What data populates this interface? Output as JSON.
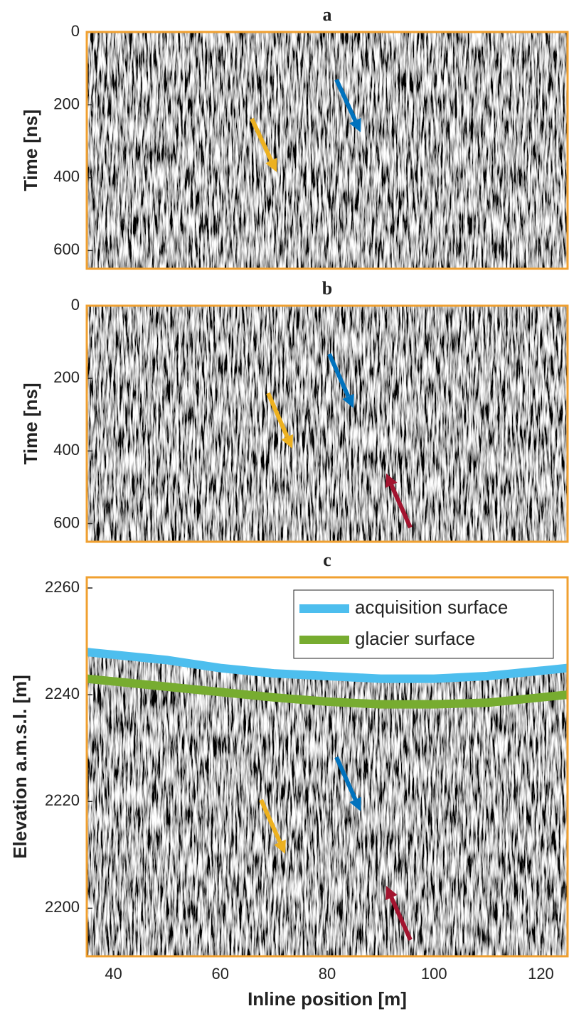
{
  "chart_data": [
    {
      "type": "image",
      "title": "a",
      "y_label": "Time [ns]",
      "ylim": [
        0,
        650
      ],
      "yticks": [
        0,
        200,
        400,
        600
      ],
      "y_reversed": true
    },
    {
      "type": "image",
      "title": "b",
      "y_label": "Time [ns]",
      "ylim": [
        0,
        650
      ],
      "yticks": [
        0,
        200,
        400,
        600
      ],
      "y_reversed": true
    },
    {
      "type": "line",
      "title": "c",
      "x_label": "Inline position [m]",
      "y_label": "Elevation a.m.s.l. [m]",
      "xlim": [
        35,
        125
      ],
      "xticks": [
        40,
        60,
        80,
        100,
        120
      ],
      "ylim": [
        2191,
        2262
      ],
      "yticks": [
        2200,
        2220,
        2240,
        2260
      ],
      "x": [
        35,
        50,
        60,
        70,
        80,
        90,
        100,
        110,
        120,
        125
      ],
      "series": [
        {
          "name": "acquisition surface",
          "color": "#4dbeee",
          "values": [
            2248,
            2246.5,
            2245,
            2244,
            2243.5,
            2243,
            2243,
            2243.5,
            2244.5,
            2245
          ]
        },
        {
          "name": "glacier surface",
          "color": "#77ac30",
          "values": [
            2243,
            2241.5,
            2240.5,
            2239.5,
            2238.7,
            2238.2,
            2238.2,
            2238.5,
            2239.5,
            2240
          ]
        }
      ],
      "legend": "upper right"
    }
  ]
}
